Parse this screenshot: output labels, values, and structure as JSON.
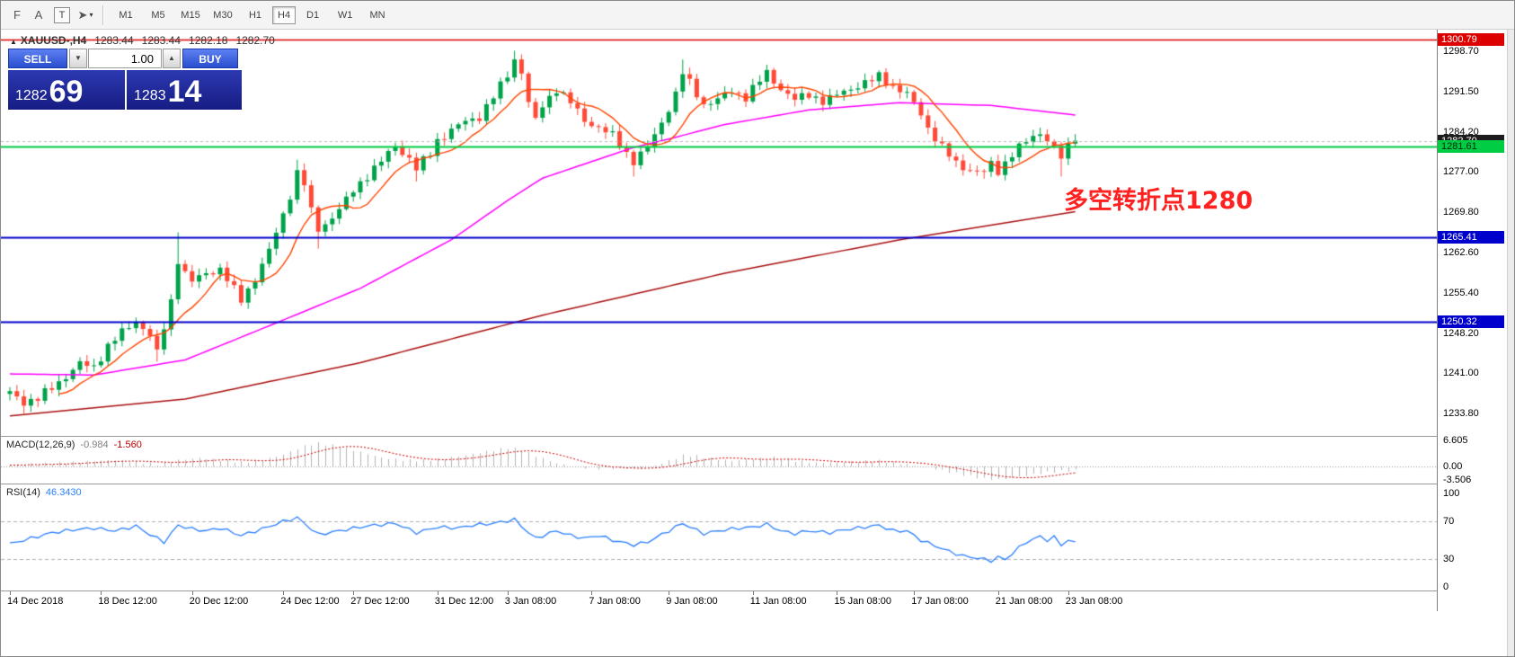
{
  "toolbar": {
    "caret_glyph": "▾",
    "tools": [
      {
        "name": "fibonacci",
        "glyph": "F",
        "caret": false
      },
      {
        "name": "text",
        "glyph": "A",
        "caret": false
      },
      {
        "name": "text-label",
        "glyph": "T",
        "caret": false
      },
      {
        "name": "arrows",
        "glyph": "➤",
        "caret": true
      }
    ],
    "timeframes": [
      {
        "label": "M1",
        "active": false
      },
      {
        "label": "M5",
        "active": false
      },
      {
        "label": "M15",
        "active": false
      },
      {
        "label": "M30",
        "active": false
      },
      {
        "label": "H1",
        "active": false
      },
      {
        "label": "H4",
        "active": true
      },
      {
        "label": "D1",
        "active": false
      },
      {
        "label": "W1",
        "active": false
      },
      {
        "label": "MN",
        "active": false
      }
    ]
  },
  "chart_header": {
    "icon_glyph": "▲",
    "symbol_period": "XAUUSD-,H4",
    "open": "1283.44",
    "high": "1283.44",
    "low": "1282.18",
    "close": "1282.70"
  },
  "trade_panel": {
    "sell_label": "SELL",
    "buy_label": "BUY",
    "volume": "1.00",
    "spin_down_glyph": "▼",
    "spin_up_glyph": "▲",
    "bid_main": "1282",
    "bid_pips": "69",
    "ask_main": "1283",
    "ask_pips": "14"
  },
  "annotation": {
    "text": "多空转折点1280",
    "color": "#ff2020"
  },
  "price_axis": {
    "labels": [
      "1298.70",
      "1291.50",
      "1284.20",
      "1277.00",
      "1269.80",
      "1262.60",
      "1255.40",
      "1248.20",
      "1241.00",
      "1233.80"
    ],
    "tags": [
      {
        "text": "1300.79",
        "value": 1300.79,
        "bg": "#dd0000",
        "fg": "#ffffff"
      },
      {
        "text": "1282.70",
        "value": 1282.7,
        "bg": "#1d1d1d",
        "fg": "#ffffff"
      },
      {
        "text": "1281.61",
        "value": 1281.61,
        "bg": "#00cc44",
        "fg": "#00290c"
      },
      {
        "text": "1265.41",
        "value": 1265.41,
        "bg": "#0000cc",
        "fg": "#ffffff"
      },
      {
        "text": "1250.32",
        "value": 1250.32,
        "bg": "#0000cc",
        "fg": "#ffffff"
      }
    ]
  },
  "macd_panel": {
    "label": "MACD(12,26,9)",
    "value_main": "-0.984",
    "value_signal": "-1.560",
    "axis": [
      "6.605",
      "0.00",
      "-3.506"
    ]
  },
  "rsi_panel": {
    "label": "RSI(14)",
    "value": "46.3430",
    "axis": [
      "100",
      "70",
      "30",
      "0"
    ],
    "levels": [
      70,
      30
    ]
  },
  "time_axis": [
    {
      "i": 0,
      "label": "14 Dec 2018"
    },
    {
      "i": 13,
      "label": "18 Dec 12:00"
    },
    {
      "i": 26,
      "label": "20 Dec 12:00"
    },
    {
      "i": 39,
      "label": "24 Dec 12:00"
    },
    {
      "i": 49,
      "label": "27 Dec 12:00"
    },
    {
      "i": 61,
      "label": "31 Dec 12:00"
    },
    {
      "i": 71,
      "label": "3 Jan 08:00"
    },
    {
      "i": 83,
      "label": "7 Jan 08:00"
    },
    {
      "i": 94,
      "label": "9 Jan 08:00"
    },
    {
      "i": 106,
      "label": "11 Jan 08:00"
    },
    {
      "i": 118,
      "label": "15 Jan 08:00"
    },
    {
      "i": 129,
      "label": "17 Jan 08:00"
    },
    {
      "i": 141,
      "label": "21 Jan 08:00"
    },
    {
      "i": 151,
      "label": "23 Jan 08:00"
    }
  ],
  "chart_data": {
    "type": "candlestick",
    "symbol": "XAUUSD",
    "period": "H4",
    "bars": 153,
    "last_close": 1282.7,
    "ylim": [
      1230.5,
      1302.5
    ],
    "price_anchors": [
      [
        0,
        1237.6
      ],
      [
        2,
        1236.0
      ],
      [
        4,
        1236.6
      ],
      [
        6,
        1238.5
      ],
      [
        8,
        1240.6
      ],
      [
        10,
        1242.8
      ],
      [
        12,
        1242.2
      ],
      [
        14,
        1246.0
      ],
      [
        16,
        1248.4
      ],
      [
        18,
        1250.4
      ],
      [
        20,
        1248.0
      ],
      [
        21,
        1244.6
      ],
      [
        23,
        1254.0
      ],
      [
        24,
        1261.5
      ],
      [
        25,
        1259.0
      ],
      [
        26,
        1257.5
      ],
      [
        28,
        1259.0
      ],
      [
        30,
        1259.8
      ],
      [
        32,
        1256.0
      ],
      [
        33,
        1254.2
      ],
      [
        35,
        1258.0
      ],
      [
        37,
        1263.0
      ],
      [
        39,
        1269.5
      ],
      [
        40,
        1273.0
      ],
      [
        41,
        1277.0
      ],
      [
        42,
        1275.0
      ],
      [
        43,
        1270.0
      ],
      [
        44,
        1266.8
      ],
      [
        46,
        1269.0
      ],
      [
        48,
        1272.0
      ],
      [
        49,
        1273.8
      ],
      [
        51,
        1276.5
      ],
      [
        53,
        1279.0
      ],
      [
        55,
        1281.8
      ],
      [
        57,
        1279.5
      ],
      [
        58,
        1277.6
      ],
      [
        60,
        1280.5
      ],
      [
        61,
        1282.8
      ],
      [
        63,
        1284.5
      ],
      [
        65,
        1286.2
      ],
      [
        67,
        1287.0
      ],
      [
        69,
        1290.5
      ],
      [
        71,
        1294.5
      ],
      [
        72,
        1297.3
      ],
      [
        73,
        1295.0
      ],
      [
        74,
        1289.5
      ],
      [
        75,
        1286.2
      ],
      [
        76,
        1289.0
      ],
      [
        78,
        1292.0
      ],
      [
        80,
        1289.5
      ],
      [
        82,
        1286.4
      ],
      [
        84,
        1285.0
      ],
      [
        86,
        1283.6
      ],
      [
        88,
        1280.5
      ],
      [
        89,
        1279.0
      ],
      [
        91,
        1281.5
      ],
      [
        93,
        1286.0
      ],
      [
        95,
        1291.0
      ],
      [
        96,
        1294.8
      ],
      [
        97,
        1293.0
      ],
      [
        99,
        1289.2
      ],
      [
        101,
        1290.0
      ],
      [
        103,
        1291.6
      ],
      [
        105,
        1290.5
      ],
      [
        106,
        1292.0
      ],
      [
        108,
        1294.8
      ],
      [
        110,
        1292.0
      ],
      [
        112,
        1290.0
      ],
      [
        114,
        1291.0
      ],
      [
        116,
        1289.8
      ],
      [
        117,
        1290.2
      ],
      [
        119,
        1291.5
      ],
      [
        121,
        1292.6
      ],
      [
        123,
        1293.5
      ],
      [
        124,
        1294.2
      ],
      [
        126,
        1292.5
      ],
      [
        128,
        1291.0
      ],
      [
        130,
        1287.5
      ],
      [
        131,
        1285.0
      ],
      [
        133,
        1281.5
      ],
      [
        135,
        1278.6
      ],
      [
        137,
        1277.5
      ],
      [
        139,
        1277.0
      ],
      [
        140,
        1278.5
      ],
      [
        141,
        1277.2
      ],
      [
        143,
        1280.4
      ],
      [
        145,
        1282.5
      ],
      [
        147,
        1284.2
      ],
      [
        148,
        1283.0
      ],
      [
        150,
        1279.6
      ],
      [
        151,
        1281.5
      ],
      [
        152,
        1282.7
      ]
    ],
    "high_spikes": [
      [
        24,
        1266.3
      ],
      [
        41,
        1279.3
      ],
      [
        72,
        1298.8
      ],
      [
        96,
        1297.2
      ],
      [
        108,
        1296.3
      ],
      [
        124,
        1295.2
      ]
    ],
    "low_spikes": [
      [
        2,
        1233.9
      ],
      [
        21,
        1243.2
      ],
      [
        44,
        1263.4
      ],
      [
        58,
        1275.4
      ],
      [
        89,
        1276.3
      ],
      [
        139,
        1275.9
      ],
      [
        150,
        1276.3
      ]
    ],
    "ma_fast_period": 8,
    "ma_mid_anchors": [
      [
        0,
        1241.0
      ],
      [
        12,
        1240.8
      ],
      [
        25,
        1243.5
      ],
      [
        37,
        1249.6
      ],
      [
        50,
        1256.3
      ],
      [
        63,
        1265.0
      ],
      [
        71,
        1272.0
      ],
      [
        76,
        1276.0
      ],
      [
        89,
        1281.5
      ],
      [
        94,
        1283.0
      ],
      [
        102,
        1285.6
      ],
      [
        114,
        1288.2
      ],
      [
        127,
        1289.5
      ],
      [
        140,
        1289.0
      ],
      [
        152,
        1287.3
      ]
    ],
    "ma_slow_anchors": [
      [
        0,
        1233.5
      ],
      [
        25,
        1236.5
      ],
      [
        50,
        1243.0
      ],
      [
        76,
        1251.5
      ],
      [
        102,
        1259.0
      ],
      [
        127,
        1265.0
      ],
      [
        152,
        1270.0
      ]
    ],
    "hlines": [
      {
        "value": 1300.79,
        "color": "#dd0000",
        "width": 1.6,
        "style": "solid"
      },
      {
        "value": 1282.7,
        "color": "#bbbbbb",
        "width": 1,
        "style": "dash"
      },
      {
        "value": 1281.61,
        "color": "#00cc44",
        "width": 2,
        "style": "solid"
      },
      {
        "value": 1265.41,
        "color": "#0000cc",
        "width": 2,
        "style": "solid"
      },
      {
        "value": 1250.32,
        "color": "#0000cc",
        "width": 2,
        "style": "solid"
      }
    ],
    "macd_anchors": [
      [
        0,
        0.3
      ],
      [
        5,
        0.7
      ],
      [
        9,
        1.0
      ],
      [
        12,
        1.4
      ],
      [
        15,
        1.6
      ],
      [
        18,
        1.1
      ],
      [
        21,
        0.5
      ],
      [
        24,
        1.6
      ],
      [
        27,
        2.1
      ],
      [
        30,
        1.6
      ],
      [
        33,
        1.0
      ],
      [
        36,
        1.6
      ],
      [
        39,
        3.0
      ],
      [
        42,
        5.2
      ],
      [
        44,
        5.9
      ],
      [
        47,
        5.0
      ],
      [
        50,
        3.6
      ],
      [
        53,
        2.2
      ],
      [
        56,
        1.6
      ],
      [
        59,
        1.5
      ],
      [
        62,
        2.0
      ],
      [
        65,
        2.8
      ],
      [
        68,
        3.8
      ],
      [
        71,
        4.7
      ],
      [
        73,
        4.2
      ],
      [
        75,
        2.6
      ],
      [
        78,
        0.8
      ],
      [
        81,
        -0.2
      ],
      [
        84,
        -0.5
      ],
      [
        87,
        -0.4
      ],
      [
        90,
        -0.6
      ],
      [
        92,
        0.2
      ],
      [
        94,
        1.4
      ],
      [
        96,
        2.8
      ],
      [
        98,
        2.6
      ],
      [
        100,
        2.0
      ],
      [
        103,
        1.4
      ],
      [
        106,
        1.9
      ],
      [
        109,
        2.2
      ],
      [
        112,
        1.4
      ],
      [
        115,
        0.9
      ],
      [
        118,
        1.0
      ],
      [
        121,
        1.3
      ],
      [
        124,
        1.4
      ],
      [
        127,
        0.7
      ],
      [
        130,
        0.0
      ],
      [
        133,
        -1.0
      ],
      [
        136,
        -2.1
      ],
      [
        139,
        -3.1
      ],
      [
        141,
        -3.3
      ],
      [
        143,
        -2.9
      ],
      [
        145,
        -2.3
      ],
      [
        147,
        -1.7
      ],
      [
        149,
        -1.3
      ],
      [
        152,
        -0.98
      ]
    ],
    "rsi_anchors": [
      [
        0,
        46
      ],
      [
        3,
        52
      ],
      [
        6,
        58
      ],
      [
        9,
        61
      ],
      [
        12,
        63
      ],
      [
        15,
        60
      ],
      [
        18,
        65
      ],
      [
        20,
        56
      ],
      [
        22,
        48
      ],
      [
        24,
        66
      ],
      [
        26,
        62
      ],
      [
        28,
        60
      ],
      [
        30,
        63
      ],
      [
        33,
        55
      ],
      [
        36,
        62
      ],
      [
        39,
        70
      ],
      [
        41,
        74
      ],
      [
        44,
        56
      ],
      [
        47,
        60
      ],
      [
        50,
        64
      ],
      [
        52,
        66
      ],
      [
        55,
        68
      ],
      [
        58,
        58
      ],
      [
        61,
        64
      ],
      [
        64,
        63
      ],
      [
        66,
        66
      ],
      [
        69,
        68
      ],
      [
        72,
        72
      ],
      [
        74,
        58
      ],
      [
        75,
        52
      ],
      [
        78,
        60
      ],
      [
        80,
        55
      ],
      [
        82,
        52
      ],
      [
        84,
        55
      ],
      [
        86,
        50
      ],
      [
        89,
        45
      ],
      [
        91,
        48
      ],
      [
        94,
        60
      ],
      [
        96,
        68
      ],
      [
        99,
        57
      ],
      [
        101,
        60
      ],
      [
        103,
        62
      ],
      [
        106,
        64
      ],
      [
        108,
        67
      ],
      [
        110,
        60
      ],
      [
        112,
        57
      ],
      [
        114,
        60
      ],
      [
        117,
        58
      ],
      [
        119,
        61
      ],
      [
        121,
        63
      ],
      [
        124,
        66
      ],
      [
        126,
        60
      ],
      [
        128,
        60
      ],
      [
        130,
        50
      ],
      [
        132,
        44
      ],
      [
        134,
        38
      ],
      [
        136,
        33
      ],
      [
        138,
        31
      ],
      [
        140,
        28
      ],
      [
        141,
        32
      ],
      [
        142,
        29
      ],
      [
        143,
        36
      ],
      [
        145,
        48
      ],
      [
        147,
        54
      ],
      [
        148,
        50
      ],
      [
        149,
        53
      ],
      [
        150,
        45
      ],
      [
        151,
        50
      ],
      [
        152,
        47
      ]
    ],
    "colors": {
      "up": "#00a24a",
      "down": "#ff4a38",
      "ma_fast": "#ff4500",
      "ma_mid": "#ff00ff",
      "ma_slow": "#aa1111",
      "macd_hist": "#b4b4b4",
      "macd_signal": "#cc0000",
      "macd_zero": "#999999",
      "rsi": "#2a7fff",
      "levels": "#b0b0b0"
    }
  }
}
